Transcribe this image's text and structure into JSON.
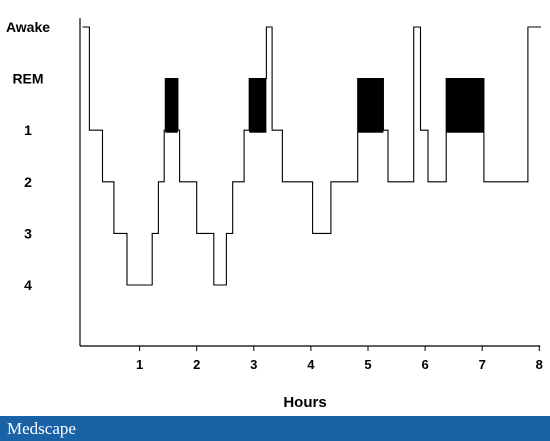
{
  "chart_data": {
    "type": "line",
    "title": "",
    "xlabel": "Hours",
    "ylabel": "",
    "x_ticks": [
      1,
      2,
      3,
      4,
      5,
      6,
      7,
      8
    ],
    "y_categories": [
      "Awake",
      "REM",
      "1",
      "2",
      "3",
      "4"
    ],
    "xlim": [
      -0.1,
      8.0
    ],
    "grid": false,
    "legend": "none",
    "series": [
      {
        "color": "#000000",
        "points": [
          [
            0.0,
            "Awake"
          ],
          [
            0.12,
            "Awake"
          ],
          [
            0.12,
            "1"
          ],
          [
            0.35,
            "1"
          ],
          [
            0.35,
            "2"
          ],
          [
            0.55,
            "2"
          ],
          [
            0.55,
            "3"
          ],
          [
            0.78,
            "3"
          ],
          [
            0.78,
            "4"
          ],
          [
            1.22,
            "4"
          ],
          [
            1.22,
            "3"
          ],
          [
            1.33,
            "3"
          ],
          [
            1.33,
            "2"
          ],
          [
            1.43,
            "2"
          ],
          [
            1.43,
            "1"
          ],
          [
            1.45,
            "1"
          ],
          [
            1.45,
            "REM"
          ],
          [
            1.67,
            "REM"
          ],
          [
            1.67,
            "1"
          ],
          [
            1.7,
            "1"
          ],
          [
            1.7,
            "2"
          ],
          [
            2.0,
            "2"
          ],
          [
            2.0,
            "3"
          ],
          [
            2.3,
            "3"
          ],
          [
            2.3,
            "4"
          ],
          [
            2.52,
            "4"
          ],
          [
            2.52,
            "3"
          ],
          [
            2.63,
            "3"
          ],
          [
            2.63,
            "2"
          ],
          [
            2.83,
            "2"
          ],
          [
            2.83,
            "1"
          ],
          [
            2.92,
            "1"
          ],
          [
            2.92,
            "REM"
          ],
          [
            3.22,
            "REM"
          ],
          [
            3.22,
            "Awake"
          ],
          [
            3.32,
            "Awake"
          ],
          [
            3.32,
            "1"
          ],
          [
            3.5,
            "1"
          ],
          [
            3.5,
            "2"
          ],
          [
            4.03,
            "2"
          ],
          [
            4.03,
            "3"
          ],
          [
            4.35,
            "3"
          ],
          [
            4.35,
            "2"
          ],
          [
            4.82,
            "2"
          ],
          [
            4.82,
            "REM"
          ],
          [
            5.27,
            "REM"
          ],
          [
            5.27,
            "1"
          ],
          [
            5.35,
            "1"
          ],
          [
            5.35,
            "2"
          ],
          [
            5.8,
            "2"
          ],
          [
            5.8,
            "Awake"
          ],
          [
            5.92,
            "Awake"
          ],
          [
            5.92,
            "1"
          ],
          [
            6.05,
            "1"
          ],
          [
            6.05,
            "2"
          ],
          [
            6.37,
            "2"
          ],
          [
            6.37,
            "REM"
          ],
          [
            7.03,
            "REM"
          ],
          [
            7.03,
            "2"
          ],
          [
            7.8,
            "2"
          ],
          [
            7.8,
            "Awake"
          ],
          [
            8.03,
            "Awake"
          ]
        ]
      }
    ],
    "rem_blocks": [
      {
        "start": 1.45,
        "end": 1.67,
        "stage": "REM",
        "fill": "#000000"
      },
      {
        "start": 2.92,
        "end": 3.22,
        "stage": "REM",
        "fill": "#000000"
      },
      {
        "start": 4.82,
        "end": 5.27,
        "stage": "REM",
        "fill": "#000000"
      },
      {
        "start": 6.37,
        "end": 7.03,
        "stage": "REM",
        "fill": "#000000"
      }
    ]
  },
  "footer": {
    "brand": "Medscape",
    "background": "#1a62a6"
  }
}
